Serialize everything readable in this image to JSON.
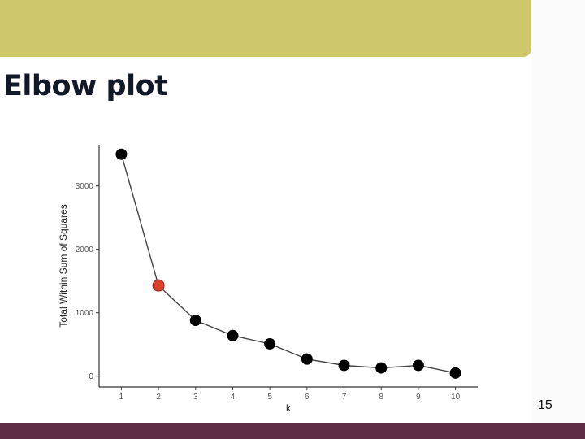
{
  "slide": {
    "title": "Elbow plot",
    "page_number": "15",
    "colors": {
      "banner": "#cfc86b",
      "footer": "#5e2d46",
      "highlight": "#d9412b",
      "point": "#000000"
    }
  },
  "chart_data": {
    "type": "line",
    "title": "",
    "xlabel": "k",
    "ylabel": "Total Within Sum of Squares",
    "x": [
      1,
      2,
      3,
      4,
      5,
      6,
      7,
      8,
      9,
      10
    ],
    "series": [
      {
        "values": [
          3500,
          1430,
          880,
          640,
          510,
          270,
          170,
          130,
          170,
          50
        ]
      }
    ],
    "highlight_k": 2,
    "xlim": [
      0.4,
      10.6
    ],
    "ylim": [
      -170,
      3650
    ],
    "yticks": [
      0,
      1000,
      2000,
      3000
    ],
    "xticks": [
      1,
      2,
      3,
      4,
      5,
      6,
      7,
      8,
      9,
      10
    ],
    "grid": false,
    "markers": true
  }
}
